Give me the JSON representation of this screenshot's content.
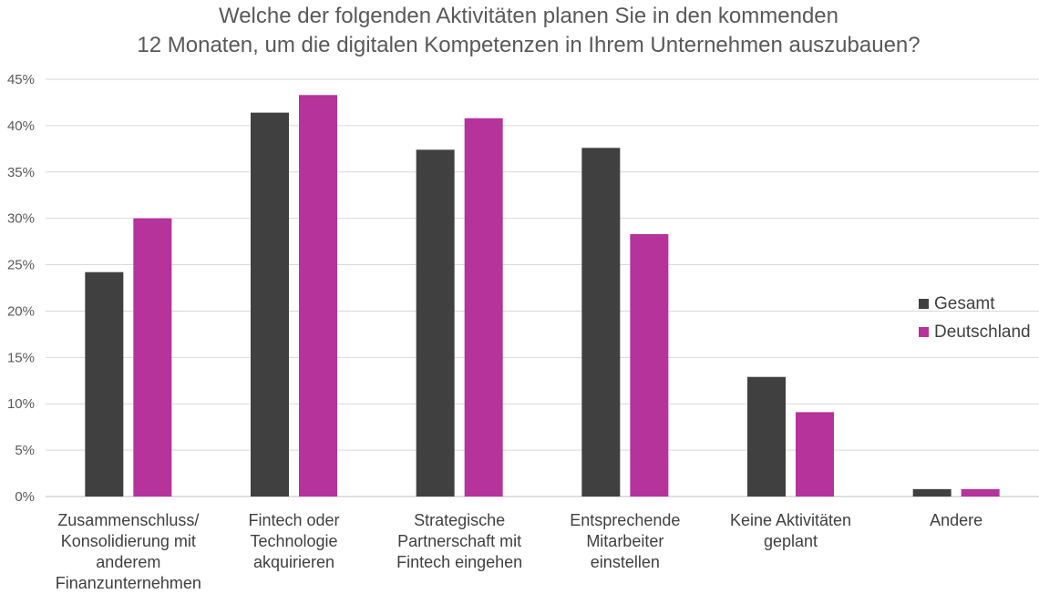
{
  "chart_data": {
    "type": "bar",
    "title_lines": [
      "Welche der folgenden Aktivitäten planen Sie in den kommenden",
      "12 Monaten, um die digitalen Kompetenzen in Ihrem Unternehmen auszubauen?"
    ],
    "categories": [
      [
        "Zusammenschluss/",
        "Konsolidierung mit",
        "anderem",
        "Finanzunternehmen"
      ],
      [
        "Fintech oder",
        "Technologie",
        "akquirieren"
      ],
      [
        "Strategische",
        "Partnerschaft mit",
        "Fintech eingehen"
      ],
      [
        "Entsprechende",
        "Mitarbeiter",
        "einstellen"
      ],
      [
        "Keine Aktivitäten",
        "geplant"
      ],
      [
        "Andere"
      ]
    ],
    "series": [
      {
        "name": "Gesamt",
        "color": "#404040",
        "values": [
          24.2,
          41.4,
          37.4,
          37.6,
          12.9,
          0.8
        ]
      },
      {
        "name": "Deutschland",
        "color": "#b5339b",
        "values": [
          30.0,
          43.3,
          40.8,
          28.3,
          9.1,
          0.8
        ]
      }
    ],
    "yticks": [
      "0%",
      "5%",
      "10%",
      "15%",
      "20%",
      "25%",
      "30%",
      "35%",
      "40%",
      "45%"
    ],
    "ylim": [
      0,
      45
    ],
    "grid": true,
    "legend_position": "right"
  }
}
